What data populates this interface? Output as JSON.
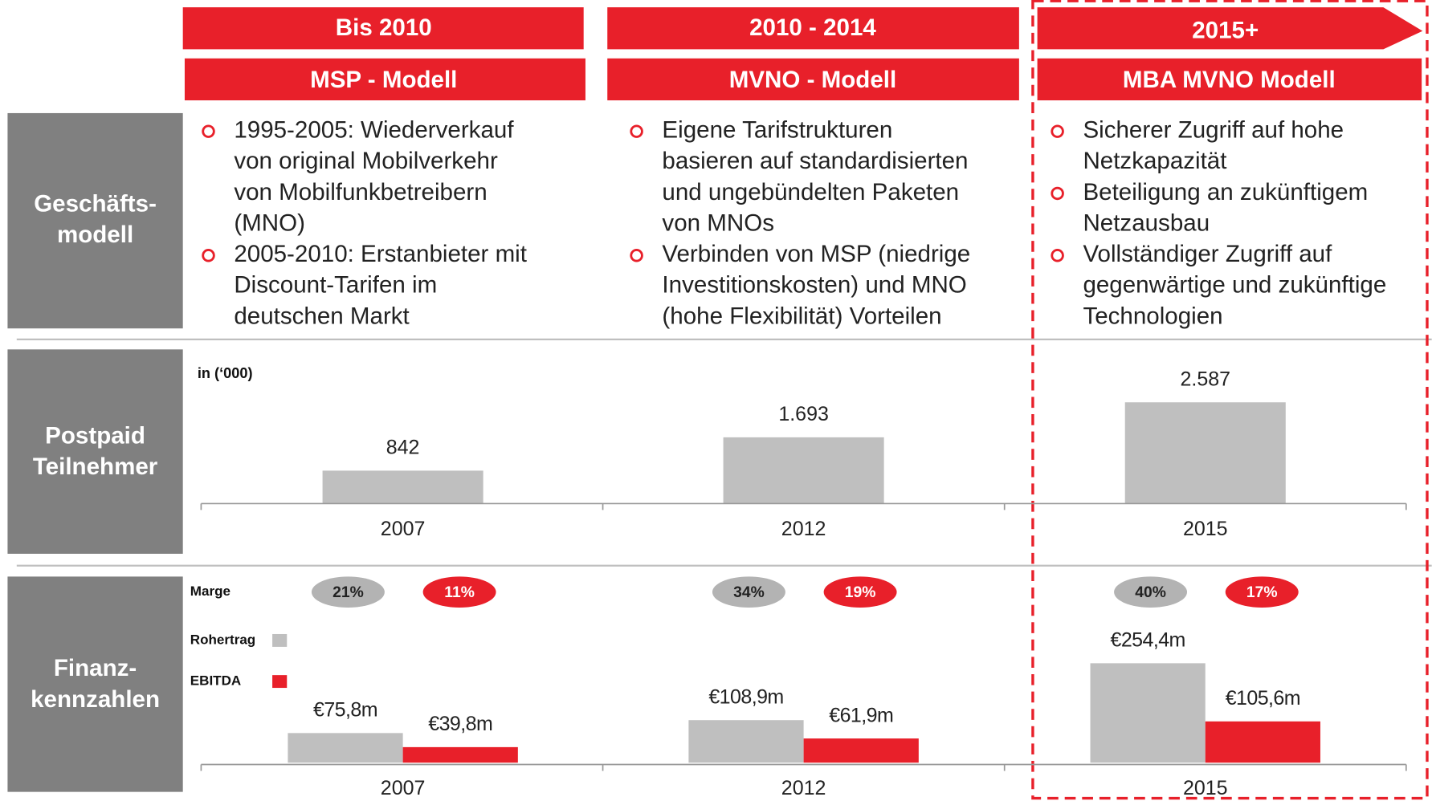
{
  "phases": [
    {
      "period": "Bis 2010",
      "model": "MSP - Modell",
      "bullets": [
        [
          "1995-2005: Wiederverkauf",
          "von original Mobilverkehr",
          "von Mobilfunkbetreibern",
          "(MNO)"
        ],
        [
          "2005-2010: Erstanbieter mit",
          "Discount-Tarifen im",
          "deutschen Markt"
        ]
      ]
    },
    {
      "period": "2010 - 2014",
      "model": "MVNO - Modell",
      "bullets": [
        [
          "Eigene Tarifstrukturen",
          "basieren auf standardisierten",
          "und ungebündelten Paketen",
          "von MNOs"
        ],
        [
          "Verbinden von MSP (niedrige",
          "Investitionskosten)  und MNO",
          "(hohe Flexibilität) Vorteilen"
        ]
      ]
    },
    {
      "period": "2015+",
      "model": "MBA  MVNO Modell",
      "bullets": [
        [
          "Sicherer Zugriff auf hohe",
          "Netzkapazität"
        ],
        [
          "Beteiligung an zukünftigem",
          "Netzausbau"
        ],
        [
          "Vollständiger Zugriff auf",
          "gegenwärtige und zukünftige",
          "Technologien"
        ]
      ]
    }
  ],
  "row_labels": [
    [
      "Geschäfts-",
      "modell"
    ],
    [
      "Postpaid",
      "Teilnehmer"
    ],
    [
      "Finanz-",
      "kennzahlen"
    ]
  ],
  "chart_data": [
    {
      "type": "bar",
      "subtitle": "in (‘000)",
      "categories": [
        "2007",
        "2012",
        "2015"
      ],
      "values": [
        842,
        1693,
        2587
      ],
      "value_labels": [
        "842",
        "1.693",
        "2.587"
      ],
      "color": "#bfbfbf"
    },
    {
      "type": "grouped-bar",
      "categories": [
        "2007",
        "2012",
        "2015"
      ],
      "series": [
        {
          "name": "Rohertrag",
          "color": "#bfbfbf",
          "values": [
            75.8,
            108.9,
            254.4
          ],
          "value_labels": [
            "€75,8m",
            "€108,9m",
            "€254,4m"
          ]
        },
        {
          "name": "EBITDA",
          "color": "#e8202a",
          "values": [
            39.8,
            61.9,
            105.6
          ],
          "value_labels": [
            "€39,8m",
            "€61,9m",
            "€105,6m"
          ]
        }
      ],
      "margin_label": "Marge",
      "margins": [
        {
          "color": "#b3b3b3",
          "values": [
            21,
            34,
            40
          ],
          "value_labels": [
            "21%",
            "34%",
            "40%"
          ]
        },
        {
          "color": "#e8202a",
          "values": [
            11,
            19,
            17
          ],
          "value_labels": [
            "11%",
            "19%",
            "17%"
          ]
        }
      ]
    }
  ]
}
